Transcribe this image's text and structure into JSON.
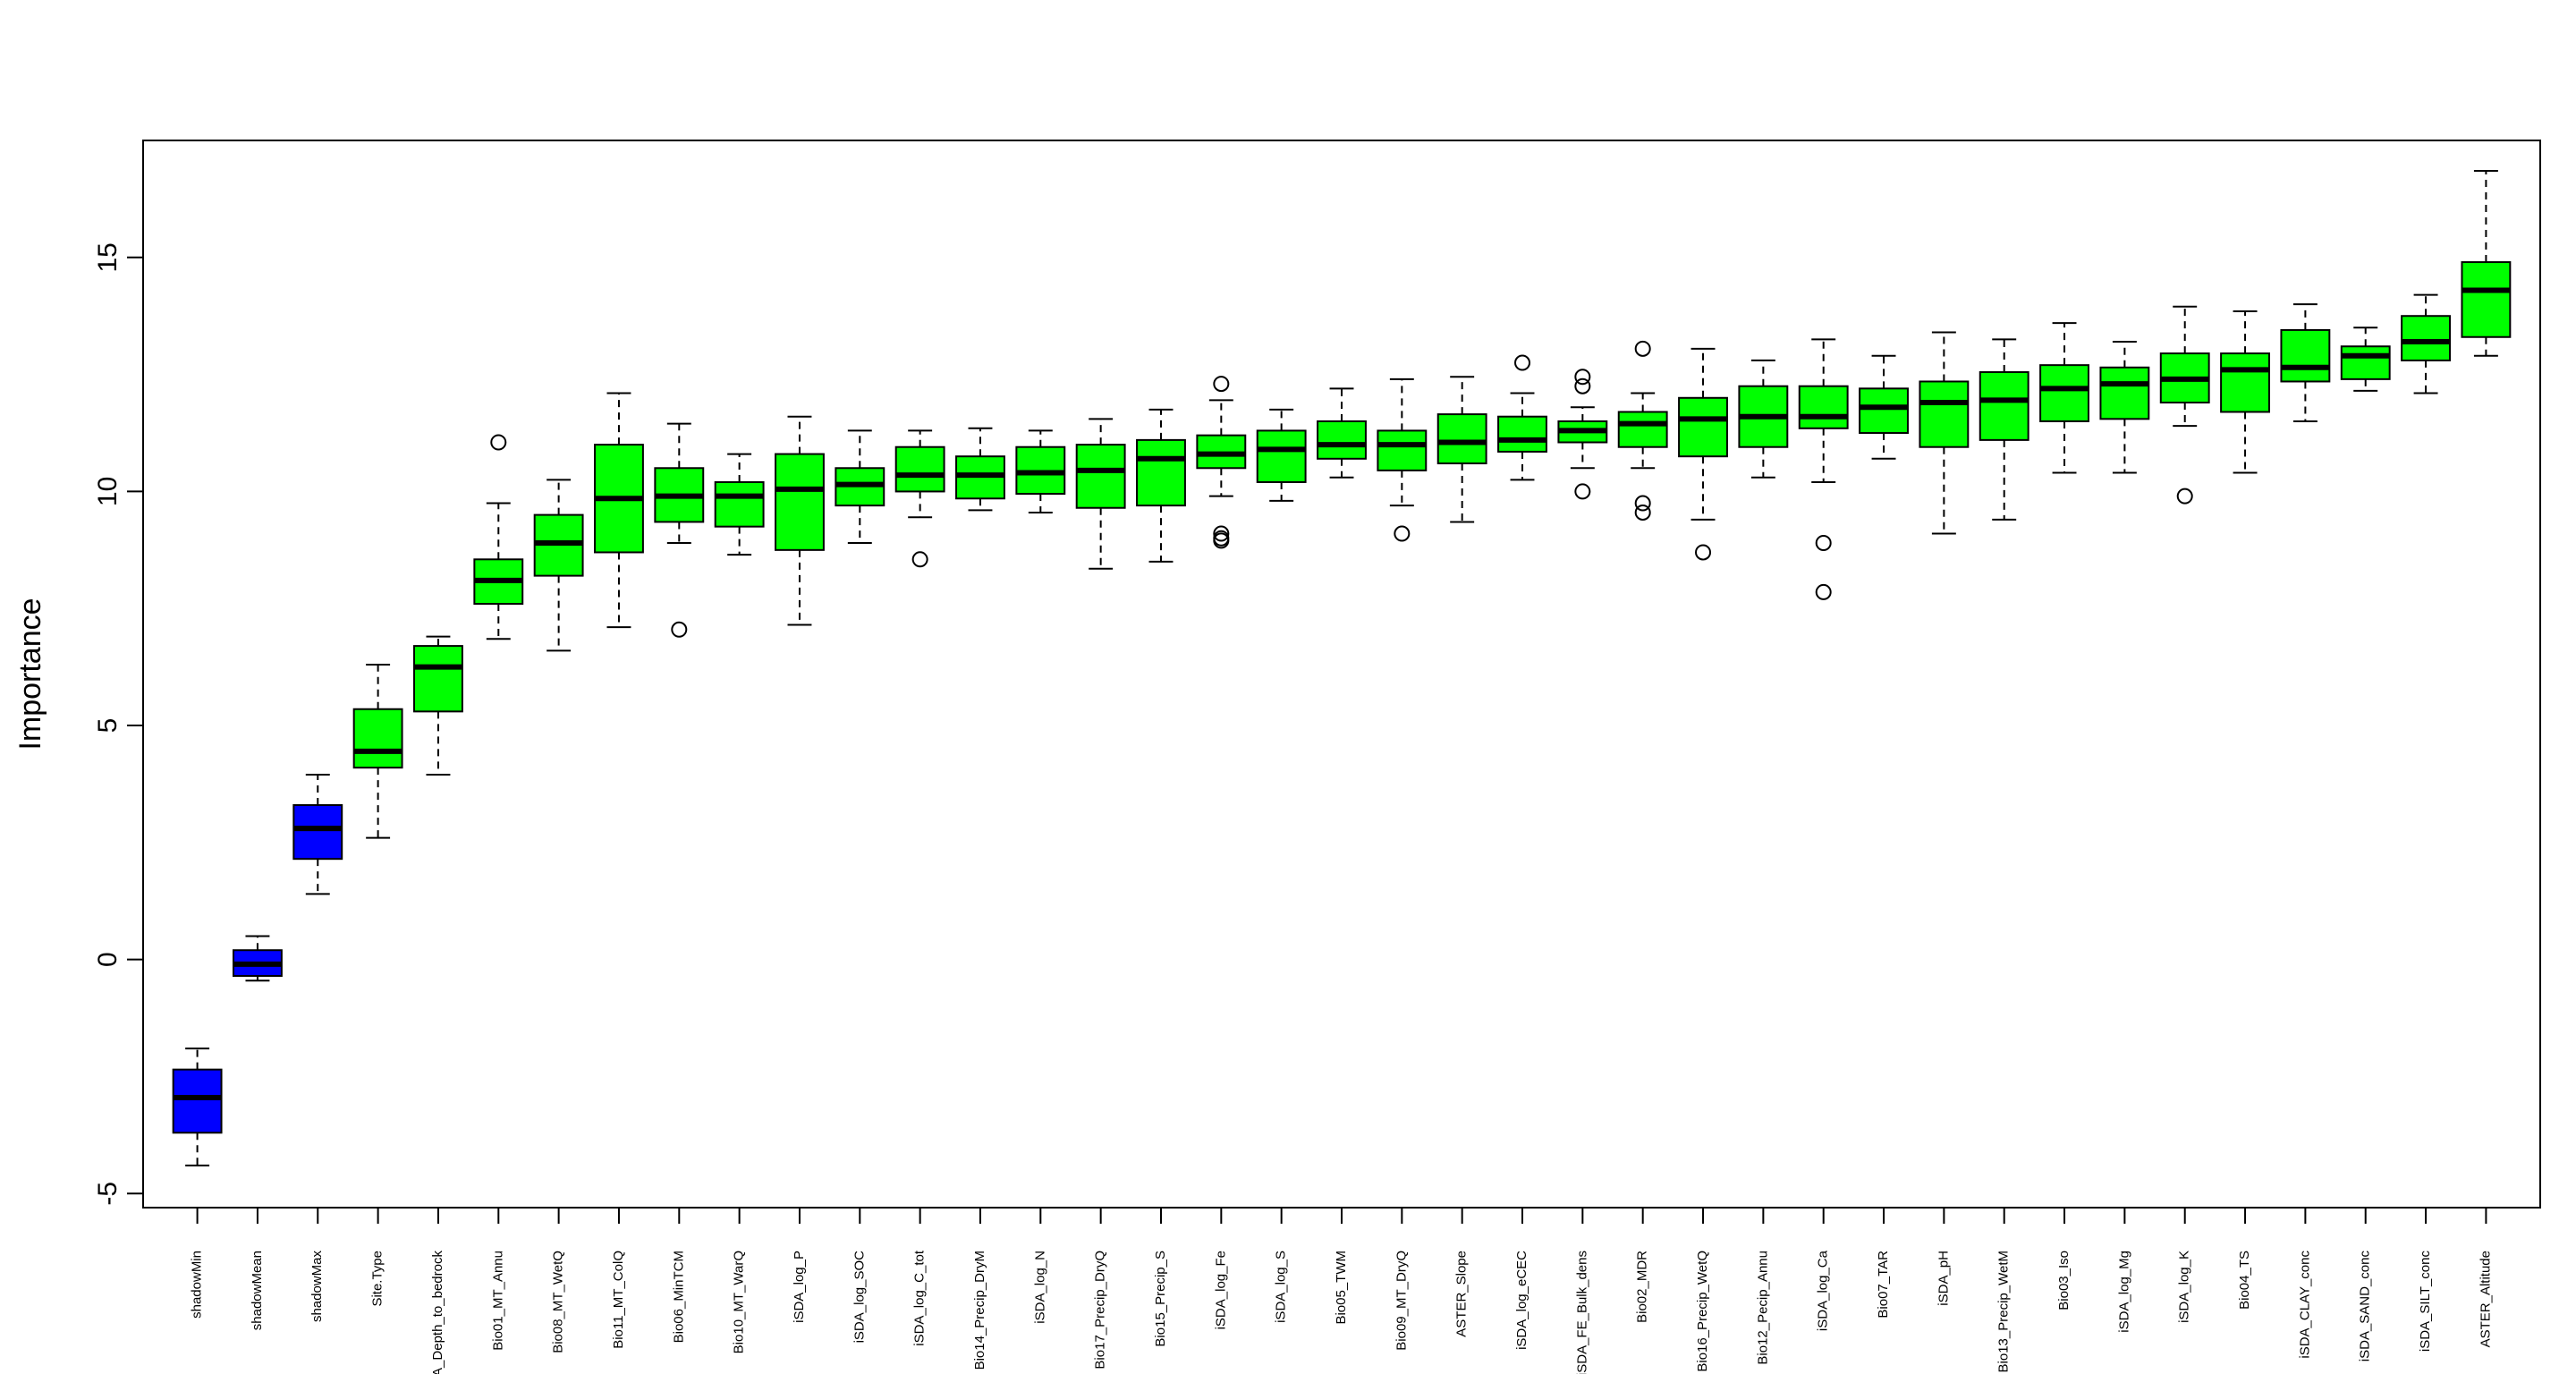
{
  "chart_data": {
    "type": "boxplot",
    "title": "",
    "xlabel": "",
    "ylabel": "Importance",
    "ylim": [
      -5.3,
      17.5
    ],
    "yticks": [
      -5,
      0,
      5,
      10,
      15
    ],
    "ytick_labels": [
      "-5",
      "0",
      "5",
      "10",
      "15"
    ],
    "colors": {
      "shadow": "#0000ff",
      "attribute": "#00ff00",
      "stroke": "#000000"
    },
    "series": [
      {
        "name": "shadowMin",
        "kind": "shadow",
        "whisker_low": -4.4,
        "q1": -3.7,
        "median": -2.95,
        "q3": -2.35,
        "whisker_high": -1.9,
        "outliers": []
      },
      {
        "name": "shadowMean",
        "kind": "shadow",
        "whisker_low": -0.45,
        "q1": -0.35,
        "median": -0.1,
        "q3": 0.2,
        "whisker_high": 0.5,
        "outliers": []
      },
      {
        "name": "shadowMax",
        "kind": "shadow",
        "whisker_low": 1.4,
        "q1": 2.15,
        "median": 2.8,
        "q3": 3.3,
        "whisker_high": 3.95,
        "outliers": []
      },
      {
        "name": "Site.Type",
        "kind": "attribute",
        "whisker_low": 2.6,
        "q1": 4.1,
        "median": 4.45,
        "q3": 5.35,
        "whisker_high": 6.3,
        "outliers": []
      },
      {
        "name": "iSDA_Depth_to_bedrock",
        "kind": "attribute",
        "whisker_low": 3.95,
        "q1": 5.3,
        "median": 6.25,
        "q3": 6.7,
        "whisker_high": 6.9,
        "outliers": []
      },
      {
        "name": "Bio01_MT_Annu",
        "kind": "attribute",
        "whisker_low": 6.85,
        "q1": 7.6,
        "median": 8.1,
        "q3": 8.55,
        "whisker_high": 9.75,
        "outliers": [
          11.05
        ]
      },
      {
        "name": "Bio08_MT_WetQ",
        "kind": "attribute",
        "whisker_low": 6.6,
        "q1": 8.2,
        "median": 8.9,
        "q3": 9.5,
        "whisker_high": 10.25,
        "outliers": []
      },
      {
        "name": "Bio11_MT_ColQ",
        "kind": "attribute",
        "whisker_low": 7.1,
        "q1": 8.7,
        "median": 9.85,
        "q3": 11.0,
        "whisker_high": 12.1,
        "outliers": []
      },
      {
        "name": "Bio06_MinTCM",
        "kind": "attribute",
        "whisker_low": 8.9,
        "q1": 9.35,
        "median": 9.9,
        "q3": 10.5,
        "whisker_high": 11.45,
        "outliers": [
          7.05
        ]
      },
      {
        "name": "Bio10_MT_WarQ",
        "kind": "attribute",
        "whisker_low": 8.65,
        "q1": 9.25,
        "median": 9.9,
        "q3": 10.2,
        "whisker_high": 10.8,
        "outliers": []
      },
      {
        "name": "iSDA_log_P",
        "kind": "attribute",
        "whisker_low": 7.15,
        "q1": 8.75,
        "median": 10.05,
        "q3": 10.8,
        "whisker_high": 11.6,
        "outliers": []
      },
      {
        "name": "iSDA_log_SOC",
        "kind": "attribute",
        "whisker_low": 8.9,
        "q1": 9.7,
        "median": 10.15,
        "q3": 10.5,
        "whisker_high": 11.3,
        "outliers": []
      },
      {
        "name": "iSDA_log_C_tot",
        "kind": "attribute",
        "whisker_low": 9.45,
        "q1": 10.0,
        "median": 10.35,
        "q3": 10.95,
        "whisker_high": 11.3,
        "outliers": [
          8.55
        ]
      },
      {
        "name": "Bio14_Precip_DryM",
        "kind": "attribute",
        "whisker_low": 9.6,
        "q1": 9.85,
        "median": 10.35,
        "q3": 10.75,
        "whisker_high": 11.35,
        "outliers": []
      },
      {
        "name": "iSDA_log_N",
        "kind": "attribute",
        "whisker_low": 9.55,
        "q1": 9.95,
        "median": 10.4,
        "q3": 10.95,
        "whisker_high": 11.3,
        "outliers": []
      },
      {
        "name": "Bio17_Precip_DryQ",
        "kind": "attribute",
        "whisker_low": 8.35,
        "q1": 9.65,
        "median": 10.45,
        "q3": 11.0,
        "whisker_high": 11.55,
        "outliers": []
      },
      {
        "name": "Bio15_Precip_S",
        "kind": "attribute",
        "whisker_low": 8.5,
        "q1": 9.7,
        "median": 10.7,
        "q3": 11.1,
        "whisker_high": 11.75,
        "outliers": []
      },
      {
        "name": "iSDA_log_Fe",
        "kind": "attribute",
        "whisker_low": 9.9,
        "q1": 10.5,
        "median": 10.8,
        "q3": 11.2,
        "whisker_high": 11.95,
        "outliers": [
          12.3,
          9.1,
          9.0,
          8.95
        ]
      },
      {
        "name": "iSDA_log_S",
        "kind": "attribute",
        "whisker_low": 9.8,
        "q1": 10.2,
        "median": 10.9,
        "q3": 11.3,
        "whisker_high": 11.75,
        "outliers": []
      },
      {
        "name": "Bio05_TWM",
        "kind": "attribute",
        "whisker_low": 10.3,
        "q1": 10.7,
        "median": 11.0,
        "q3": 11.5,
        "whisker_high": 12.2,
        "outliers": []
      },
      {
        "name": "Bio09_MT_DryQ",
        "kind": "attribute",
        "whisker_low": 9.7,
        "q1": 10.45,
        "median": 11.0,
        "q3": 11.3,
        "whisker_high": 12.4,
        "outliers": [
          9.1
        ]
      },
      {
        "name": "ASTER_Slope",
        "kind": "attribute",
        "whisker_low": 9.35,
        "q1": 10.6,
        "median": 11.05,
        "q3": 11.65,
        "whisker_high": 12.45,
        "outliers": []
      },
      {
        "name": "iSDA_log_eCEC",
        "kind": "attribute",
        "whisker_low": 10.25,
        "q1": 10.85,
        "median": 11.1,
        "q3": 11.6,
        "whisker_high": 12.1,
        "outliers": [
          12.75
        ]
      },
      {
        "name": "iSDA_FE_Bulk_dens",
        "kind": "attribute",
        "whisker_low": 10.5,
        "q1": 11.05,
        "median": 11.3,
        "q3": 11.5,
        "whisker_high": 11.8,
        "outliers": [
          12.45,
          12.25,
          10.0
        ]
      },
      {
        "name": "Bio02_MDR",
        "kind": "attribute",
        "whisker_low": 10.5,
        "q1": 10.95,
        "median": 11.45,
        "q3": 11.7,
        "whisker_high": 12.1,
        "outliers": [
          13.05,
          9.75,
          9.55
        ]
      },
      {
        "name": "Bio16_Precip_WetQ",
        "kind": "attribute",
        "whisker_low": 9.4,
        "q1": 10.75,
        "median": 11.55,
        "q3": 12.0,
        "whisker_high": 13.05,
        "outliers": [
          8.7
        ]
      },
      {
        "name": "Bio12_Pecip_Annu",
        "kind": "attribute",
        "whisker_low": 10.3,
        "q1": 10.95,
        "median": 11.6,
        "q3": 12.25,
        "whisker_high": 12.8,
        "outliers": []
      },
      {
        "name": "iSDA_log_Ca",
        "kind": "attribute",
        "whisker_low": 10.2,
        "q1": 11.35,
        "median": 11.6,
        "q3": 12.25,
        "whisker_high": 13.25,
        "outliers": [
          8.9,
          7.85
        ]
      },
      {
        "name": "Bio07_TAR",
        "kind": "attribute",
        "whisker_low": 10.7,
        "q1": 11.25,
        "median": 11.8,
        "q3": 12.2,
        "whisker_high": 12.9,
        "outliers": []
      },
      {
        "name": "iSDA_pH",
        "kind": "attribute",
        "whisker_low": 9.1,
        "q1": 10.95,
        "median": 11.9,
        "q3": 12.35,
        "whisker_high": 13.4,
        "outliers": []
      },
      {
        "name": "Bio13_Precip_WetM",
        "kind": "attribute",
        "whisker_low": 9.4,
        "q1": 11.1,
        "median": 11.95,
        "q3": 12.55,
        "whisker_high": 13.25,
        "outliers": []
      },
      {
        "name": "Bio03_Iso",
        "kind": "attribute",
        "whisker_low": 10.4,
        "q1": 11.5,
        "median": 12.2,
        "q3": 12.7,
        "whisker_high": 13.6,
        "outliers": []
      },
      {
        "name": "iSDA_log_Mg",
        "kind": "attribute",
        "whisker_low": 10.4,
        "q1": 11.55,
        "median": 12.3,
        "q3": 12.65,
        "whisker_high": 13.2,
        "outliers": []
      },
      {
        "name": "iSDA_log_K",
        "kind": "attribute",
        "whisker_low": 11.4,
        "q1": 11.9,
        "median": 12.4,
        "q3": 12.95,
        "whisker_high": 13.95,
        "outliers": [
          9.9
        ]
      },
      {
        "name": "Bio04_TS",
        "kind": "attribute",
        "whisker_low": 10.4,
        "q1": 11.7,
        "median": 12.6,
        "q3": 12.95,
        "whisker_high": 13.85,
        "outliers": []
      },
      {
        "name": "iSDA_CLAY_conc",
        "kind": "attribute",
        "whisker_low": 11.5,
        "q1": 12.35,
        "median": 12.65,
        "q3": 13.45,
        "whisker_high": 14.0,
        "outliers": []
      },
      {
        "name": "iSDA_SAND_conc",
        "kind": "attribute",
        "whisker_low": 12.15,
        "q1": 12.4,
        "median": 12.9,
        "q3": 13.1,
        "whisker_high": 13.5,
        "outliers": []
      },
      {
        "name": "iSDA_SILT_conc",
        "kind": "attribute",
        "whisker_low": 12.1,
        "q1": 12.8,
        "median": 13.2,
        "q3": 13.75,
        "whisker_high": 14.2,
        "outliers": []
      },
      {
        "name": "ASTER_Altitude",
        "kind": "attribute",
        "whisker_low": 12.9,
        "q1": 13.3,
        "median": 14.3,
        "q3": 14.9,
        "whisker_high": 16.85,
        "outliers": []
      }
    ]
  }
}
